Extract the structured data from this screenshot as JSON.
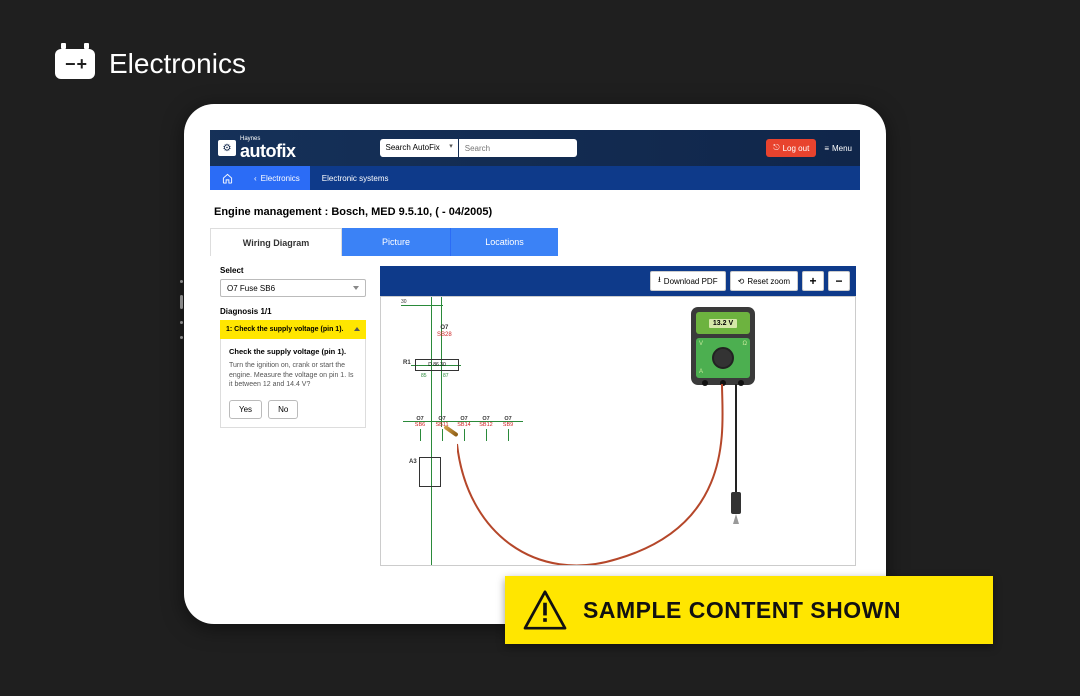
{
  "category": {
    "title": "Electronics",
    "icon_glyph": "− +"
  },
  "sample_banner": "SAMPLE CONTENT SHOWN",
  "topbar": {
    "logo_top": "Haynes",
    "logo_main": "autofix",
    "search_select": "Search AutoFix",
    "search_placeholder": "Search",
    "logout": "Log out",
    "menu": "Menu"
  },
  "breadcrumb": {
    "back_label": "Electronics",
    "current": "Electronic systems"
  },
  "page_title": "Engine management :  Bosch, MED 9.5.10, ( - 04/2005)",
  "tabs": {
    "wiring": "Wiring Diagram",
    "picture": "Picture",
    "locations": "Locations"
  },
  "left": {
    "select_label": "Select",
    "select_value": "O7  Fuse  SB6",
    "diag_counter": "Diagnosis 1/1",
    "step_header": "1: Check the supply voltage (pin 1).",
    "step_body_title": "Check the supply voltage (pin 1).",
    "step_body_text": "Turn the ignition on, crank or start the engine. Measure the voltage on pin 1. Is it between 12 and 14.4 V?",
    "yes": "Yes",
    "no": "No"
  },
  "toolbar": {
    "download": "Download PDF",
    "reset": "Reset zoom",
    "plus": "+",
    "minus": "−"
  },
  "wiring": {
    "line_color": "#2a8a3a",
    "ref_color": "#c0392b",
    "top_num": "30",
    "o7_label_top": "O7",
    "o7_label_bot": "SB28",
    "r1": "R1",
    "d_label": "D  86  30",
    "nums_a": "85",
    "nums_b": "87",
    "a3": "A3",
    "fuses": [
      {
        "top": "O7",
        "bot": "SB6"
      },
      {
        "top": "O7",
        "bot": "SB11"
      },
      {
        "top": "O7",
        "bot": "SB14"
      },
      {
        "top": "O7",
        "bot": "SB12"
      },
      {
        "top": "O7",
        "bot": "SB9"
      }
    ],
    "fuse_nums": [
      "1",
      "2",
      "1",
      "2",
      "1",
      "2",
      "1",
      "2",
      "1",
      "2"
    ]
  },
  "meter": {
    "reading": "13.2 V",
    "body_color": "#3a3a3a",
    "panel_color": "#4caf50",
    "screen_bg": "#6db33f",
    "screen_inner": "#d5e8a8",
    "left_letter": "V",
    "right_letter": "Ω",
    "bl_letter": "A"
  },
  "colors": {
    "brand_blue": "#0e3a8a",
    "accent_blue": "#2b6cf6",
    "tab_blue": "#3b82f6",
    "logout_red": "#e8432e",
    "yellow": "#ffe600"
  }
}
